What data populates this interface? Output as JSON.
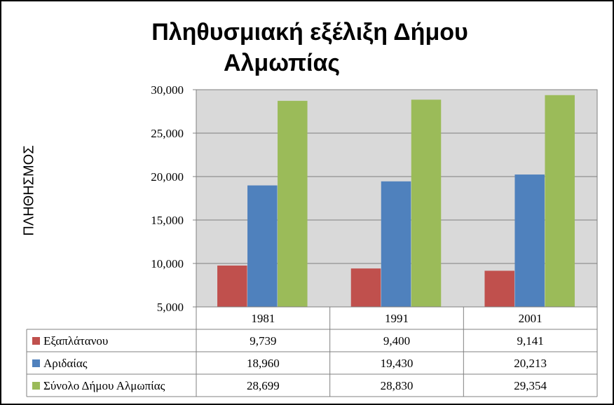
{
  "chart_data": {
    "type": "bar",
    "title_line1": "Πληθυσμιακή εξέλιξη Δήμου",
    "title_line2": "Αλμωπίας",
    "ylabel": "ΠΛΗΘΗΣΜΟΣ",
    "xlabel": "",
    "categories": [
      "1981",
      "1991",
      "2001"
    ],
    "ylim": [
      5000,
      30000
    ],
    "yticks": [
      "5,000",
      "10,000",
      "15,000",
      "20,000",
      "25,000",
      "30,000"
    ],
    "ytick_values": [
      5000,
      10000,
      15000,
      20000,
      25000,
      30000
    ],
    "grid": true,
    "legend": "data-table",
    "series": [
      {
        "name": "Εξαπλάτανου",
        "values": [
          9739,
          9400,
          9141
        ],
        "labels": [
          "9,739",
          "9,400",
          "9,141"
        ],
        "color": "#C0504D"
      },
      {
        "name": "Αριδαίας",
        "values": [
          18960,
          19430,
          20213
        ],
        "labels": [
          "18,960",
          "19,430",
          "20,213"
        ],
        "color": "#4F81BD"
      },
      {
        "name": "Σύνολο Δήμου Αλμωπίας",
        "values": [
          28699,
          28830,
          29354
        ],
        "labels": [
          "28,699",
          "28,830",
          "29,354"
        ],
        "color": "#9BBB59"
      }
    ]
  }
}
